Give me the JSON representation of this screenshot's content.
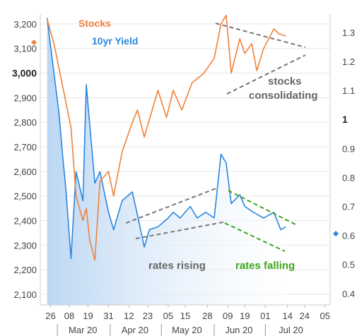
{
  "chart_data": {
    "type": "line",
    "legend": [
      "Stocks",
      "10yr Yield"
    ],
    "colors": {
      "stocks": "#f0813a",
      "yield": "#2a86e0",
      "area": "#dbe9f8",
      "grid": "#e6e6e6",
      "trend_gray": "#777777",
      "trend_green": "#3aa61a"
    },
    "left_axis": {
      "range": [
        2080,
        3260
      ],
      "ticks": [
        "3,200",
        "3,100",
        "3,000",
        "2,900",
        "2,800",
        "2,700",
        "2,600",
        "2,500",
        "2,400",
        "2,300",
        "2,200",
        "2,100"
      ],
      "tick_values": [
        3200,
        3100,
        3000,
        2900,
        2800,
        2700,
        2600,
        2500,
        2400,
        2300,
        2200,
        2100
      ],
      "bold_ticks": [
        "3,000"
      ]
    },
    "right_axis": {
      "range": [
        0.38,
        1.38
      ],
      "ticks": [
        "1.3",
        "1.2",
        "1.1",
        "1",
        "0.9",
        "0.8",
        "0.7",
        "0.6",
        "0.5",
        "0.4"
      ],
      "tick_values": [
        1.3,
        1.2,
        1.1,
        1.0,
        0.9,
        0.8,
        0.7,
        0.6,
        0.5,
        0.4
      ],
      "bold_ticks": [
        "1"
      ]
    },
    "x_axis": {
      "day_ticks": [
        "26",
        "08",
        "19",
        "31",
        "12",
        "23",
        "05",
        "15",
        "28",
        "09",
        "19",
        "01",
        "14",
        "24",
        "05"
      ],
      "months": [
        "Mar 20",
        "Apr 20",
        "May 20",
        "Jun 20",
        "Jul 20"
      ]
    },
    "series": [
      {
        "name": "Stocks",
        "x": [
          "Feb 24",
          "Feb 28",
          "Mar 04",
          "Mar 09",
          "Mar 12",
          "Mar 16",
          "Mar 18",
          "Mar 20",
          "Mar 23",
          "Mar 26",
          "Mar 31",
          "Apr 03",
          "Apr 08",
          "Apr 14",
          "Apr 17",
          "Apr 21",
          "Apr 29",
          "May 04",
          "May 08",
          "May 13",
          "May 19",
          "May 26",
          "Jun 01",
          "Jun 05",
          "Jun 08",
          "Jun 11",
          "Jun 16",
          "Jun 19",
          "Jun 23",
          "Jun 26",
          "Jun 30",
          "Jul 06",
          "Jul 09",
          "Jul 13"
        ],
        "values": [
          3220,
          3120,
          2950,
          2780,
          2500,
          2400,
          2450,
          2320,
          2240,
          2560,
          2600,
          2500,
          2680,
          2800,
          2850,
          2740,
          2930,
          2820,
          2930,
          2850,
          2960,
          3000,
          3060,
          3200,
          3235,
          3000,
          3140,
          3080,
          3120,
          3010,
          3100,
          3180,
          3160,
          3150
        ]
      },
      {
        "name": "10yr Yield",
        "x": [
          "Feb 24",
          "Feb 28",
          "Mar 02",
          "Mar 04",
          "Mar 06",
          "Mar 09",
          "Mar 12",
          "Mar 16",
          "Mar 18",
          "Mar 19",
          "Mar 23",
          "Mar 26",
          "Mar 31",
          "Apr 03",
          "Apr 08",
          "Apr 14",
          "Apr 17",
          "Apr 21",
          "Apr 24",
          "Apr 29",
          "May 05",
          "May 08",
          "May 12",
          "May 18",
          "May 22",
          "May 27",
          "Jun 01",
          "Jun 05",
          "Jun 08",
          "Jun 11",
          "Jun 16",
          "Jun 19",
          "Jun 24",
          "Jun 30",
          "Jul 06",
          "Jul 10",
          "Jul 13"
        ],
        "values": [
          1.35,
          1.16,
          1.02,
          0.88,
          0.76,
          0.52,
          0.82,
          0.72,
          1.12,
          1.05,
          0.78,
          0.82,
          0.68,
          0.62,
          0.72,
          0.75,
          0.67,
          0.56,
          0.62,
          0.63,
          0.66,
          0.68,
          0.66,
          0.7,
          0.66,
          0.68,
          0.66,
          0.88,
          0.85,
          0.71,
          0.74,
          0.7,
          0.68,
          0.66,
          0.68,
          0.62,
          0.63
        ]
      }
    ],
    "annotations": {
      "stocks_consolidating": "stocks\nconsolidating",
      "rates_rising": "rates rising",
      "rates_falling": "rates falling"
    }
  }
}
